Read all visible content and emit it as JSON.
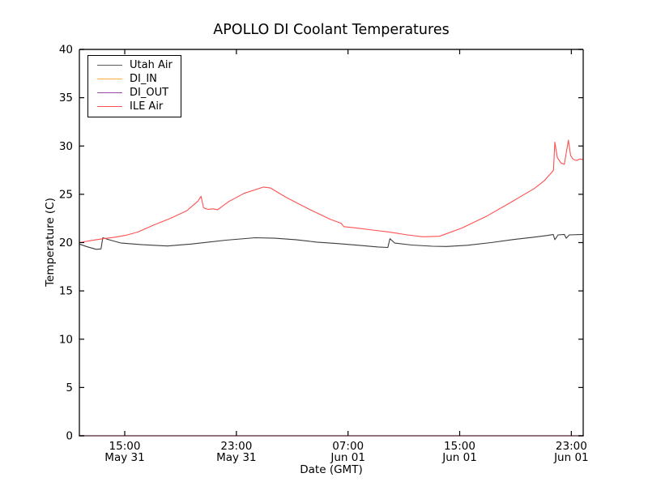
{
  "figure": {
    "title": "APOLLO DI Coolant Temperatures",
    "xlabel": "Date (GMT)",
    "ylabel": "Temperature (C)"
  },
  "chart_data": {
    "type": "line",
    "title": "APOLLO DI Coolant Temperatures",
    "xlabel": "Date (GMT)",
    "ylabel": "Temperature (C)",
    "background": "#ffffff",
    "grid": false,
    "ylim": [
      0,
      40
    ],
    "yticks": [
      0,
      5,
      10,
      15,
      20,
      25,
      30,
      35,
      40
    ],
    "x_axis": {
      "unit": "hours_from_left_edge",
      "xlim": [
        0,
        36.1
      ],
      "ticks": [
        {
          "t": 3.25,
          "time": "15:00",
          "date": "May 31"
        },
        {
          "t": 11.25,
          "time": "23:00",
          "date": "May 31"
        },
        {
          "t": 19.25,
          "time": "07:00",
          "date": "Jun 01"
        },
        {
          "t": 27.25,
          "time": "15:00",
          "date": "Jun 01"
        },
        {
          "t": 35.25,
          "time": "23:00",
          "date": "Jun 01"
        }
      ]
    },
    "legend": {
      "position": "upper left",
      "entries": [
        {
          "label": "Utah Air",
          "color": "#5a5a5a"
        },
        {
          "label": "DI_IN",
          "color": "#ffad42"
        },
        {
          "label": "DI_OUT",
          "color": "#9b4fa8"
        },
        {
          "label": "ILE Air",
          "color": "#ff5050"
        }
      ]
    },
    "series": [
      {
        "name": "Utah Air",
        "color": "#3c3c3c",
        "points": [
          [
            0,
            19.85
          ],
          [
            0.5,
            19.6
          ],
          [
            1.2,
            19.3
          ],
          [
            1.55,
            19.35
          ],
          [
            1.68,
            20.5
          ],
          [
            2.1,
            20.3
          ],
          [
            3.0,
            19.95
          ],
          [
            4.5,
            19.78
          ],
          [
            6.3,
            19.65
          ],
          [
            8.0,
            19.85
          ],
          [
            10.5,
            20.25
          ],
          [
            12.6,
            20.5
          ],
          [
            14.0,
            20.45
          ],
          [
            15.5,
            20.3
          ],
          [
            17.0,
            20.05
          ],
          [
            18.5,
            19.9
          ],
          [
            20.0,
            19.72
          ],
          [
            21.4,
            19.55
          ],
          [
            22.1,
            19.5
          ],
          [
            22.25,
            20.4
          ],
          [
            22.6,
            19.95
          ],
          [
            23.8,
            19.75
          ],
          [
            25.3,
            19.62
          ],
          [
            26.3,
            19.6
          ],
          [
            27.8,
            19.72
          ],
          [
            29.5,
            20.0
          ],
          [
            31.0,
            20.3
          ],
          [
            32.5,
            20.55
          ],
          [
            33.6,
            20.75
          ],
          [
            33.95,
            20.85
          ],
          [
            34.07,
            20.3
          ],
          [
            34.3,
            20.8
          ],
          [
            34.75,
            20.85
          ],
          [
            34.88,
            20.45
          ],
          [
            35.1,
            20.8
          ],
          [
            36.1,
            20.85
          ]
        ]
      },
      {
        "name": "DI_IN",
        "color": "#ffad42",
        "points": [
          [
            0,
            0
          ],
          [
            36.1,
            0
          ]
        ]
      },
      {
        "name": "DI_OUT",
        "color": "#9b4fa8",
        "points": [
          [
            0,
            0
          ],
          [
            36.1,
            0
          ]
        ]
      },
      {
        "name": "ILE Air",
        "color": "#ff5050",
        "points": [
          [
            0,
            20.0
          ],
          [
            0.8,
            20.2
          ],
          [
            1.7,
            20.4
          ],
          [
            2.5,
            20.55
          ],
          [
            3.3,
            20.75
          ],
          [
            4.2,
            21.1
          ],
          [
            5.3,
            21.8
          ],
          [
            6.5,
            22.5
          ],
          [
            7.7,
            23.3
          ],
          [
            8.5,
            24.3
          ],
          [
            8.72,
            24.8
          ],
          [
            8.9,
            23.6
          ],
          [
            9.2,
            23.45
          ],
          [
            9.6,
            23.5
          ],
          [
            9.9,
            23.4
          ],
          [
            10.7,
            24.25
          ],
          [
            11.8,
            25.1
          ],
          [
            13.2,
            25.75
          ],
          [
            13.7,
            25.65
          ],
          [
            14.8,
            24.7
          ],
          [
            16.4,
            23.5
          ],
          [
            18.0,
            22.4
          ],
          [
            18.75,
            22.0
          ],
          [
            18.95,
            21.65
          ],
          [
            19.9,
            21.5
          ],
          [
            21.0,
            21.3
          ],
          [
            22.2,
            21.1
          ],
          [
            23.5,
            20.8
          ],
          [
            24.6,
            20.6
          ],
          [
            25.8,
            20.65
          ],
          [
            27.4,
            21.5
          ],
          [
            29.2,
            22.75
          ],
          [
            30.9,
            24.15
          ],
          [
            32.6,
            25.6
          ],
          [
            33.3,
            26.4
          ],
          [
            33.8,
            27.2
          ],
          [
            33.97,
            27.5
          ],
          [
            34.07,
            30.4
          ],
          [
            34.25,
            28.8
          ],
          [
            34.5,
            28.25
          ],
          [
            34.75,
            28.1
          ],
          [
            35.04,
            30.6
          ],
          [
            35.2,
            29.0
          ],
          [
            35.4,
            28.6
          ],
          [
            35.65,
            28.5
          ],
          [
            35.85,
            28.65
          ],
          [
            36.1,
            28.6
          ]
        ]
      }
    ]
  }
}
